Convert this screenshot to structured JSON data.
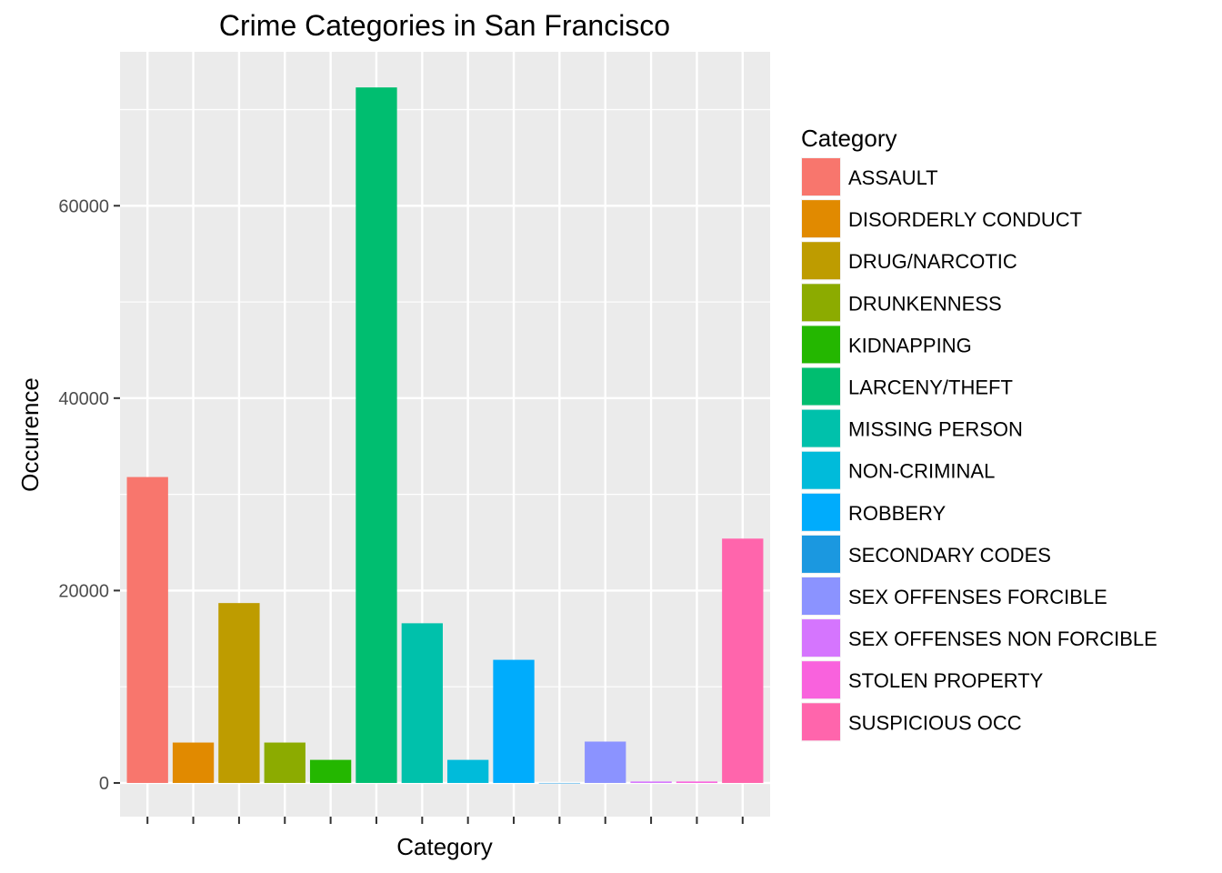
{
  "chart_data": {
    "type": "bar",
    "title": "Crime Categories in San Francisco",
    "xlabel": "Category",
    "ylabel": "Occurence",
    "ylim": [
      -3500,
      76000
    ],
    "yticks": [
      0,
      20000,
      40000,
      60000
    ],
    "grid": true,
    "x_tick_labels_shown": false,
    "legend": {
      "title": "Category",
      "position": "right"
    },
    "categories": [
      "ASSAULT",
      "DISORDERLY CONDUCT",
      "DRUG/NARCOTIC",
      "DRUNKENNESS",
      "KIDNAPPING",
      "LARCENY/THEFT",
      "MISSING PERSON",
      "NON-CRIMINAL",
      "ROBBERY",
      "SECONDARY CODES",
      "SEX OFFENSES FORCIBLE",
      "SEX OFFENSES NON FORCIBLE",
      "STOLEN PROPERTY",
      "SUSPICIOUS OCC"
    ],
    "values": [
      31800,
      4200,
      18700,
      4200,
      2400,
      72300,
      16600,
      2400,
      12800,
      0,
      4300,
      150,
      150,
      25400
    ],
    "colors": [
      "#F8766D",
      "#E18A00",
      "#BE9C00",
      "#8CAB00",
      "#24B700",
      "#00BE70",
      "#00C1AB",
      "#00BBDA",
      "#00ACFC",
      "#1B98E0",
      "#8B93FF",
      "#D575FE",
      "#F962DD",
      "#FF65AC"
    ]
  }
}
